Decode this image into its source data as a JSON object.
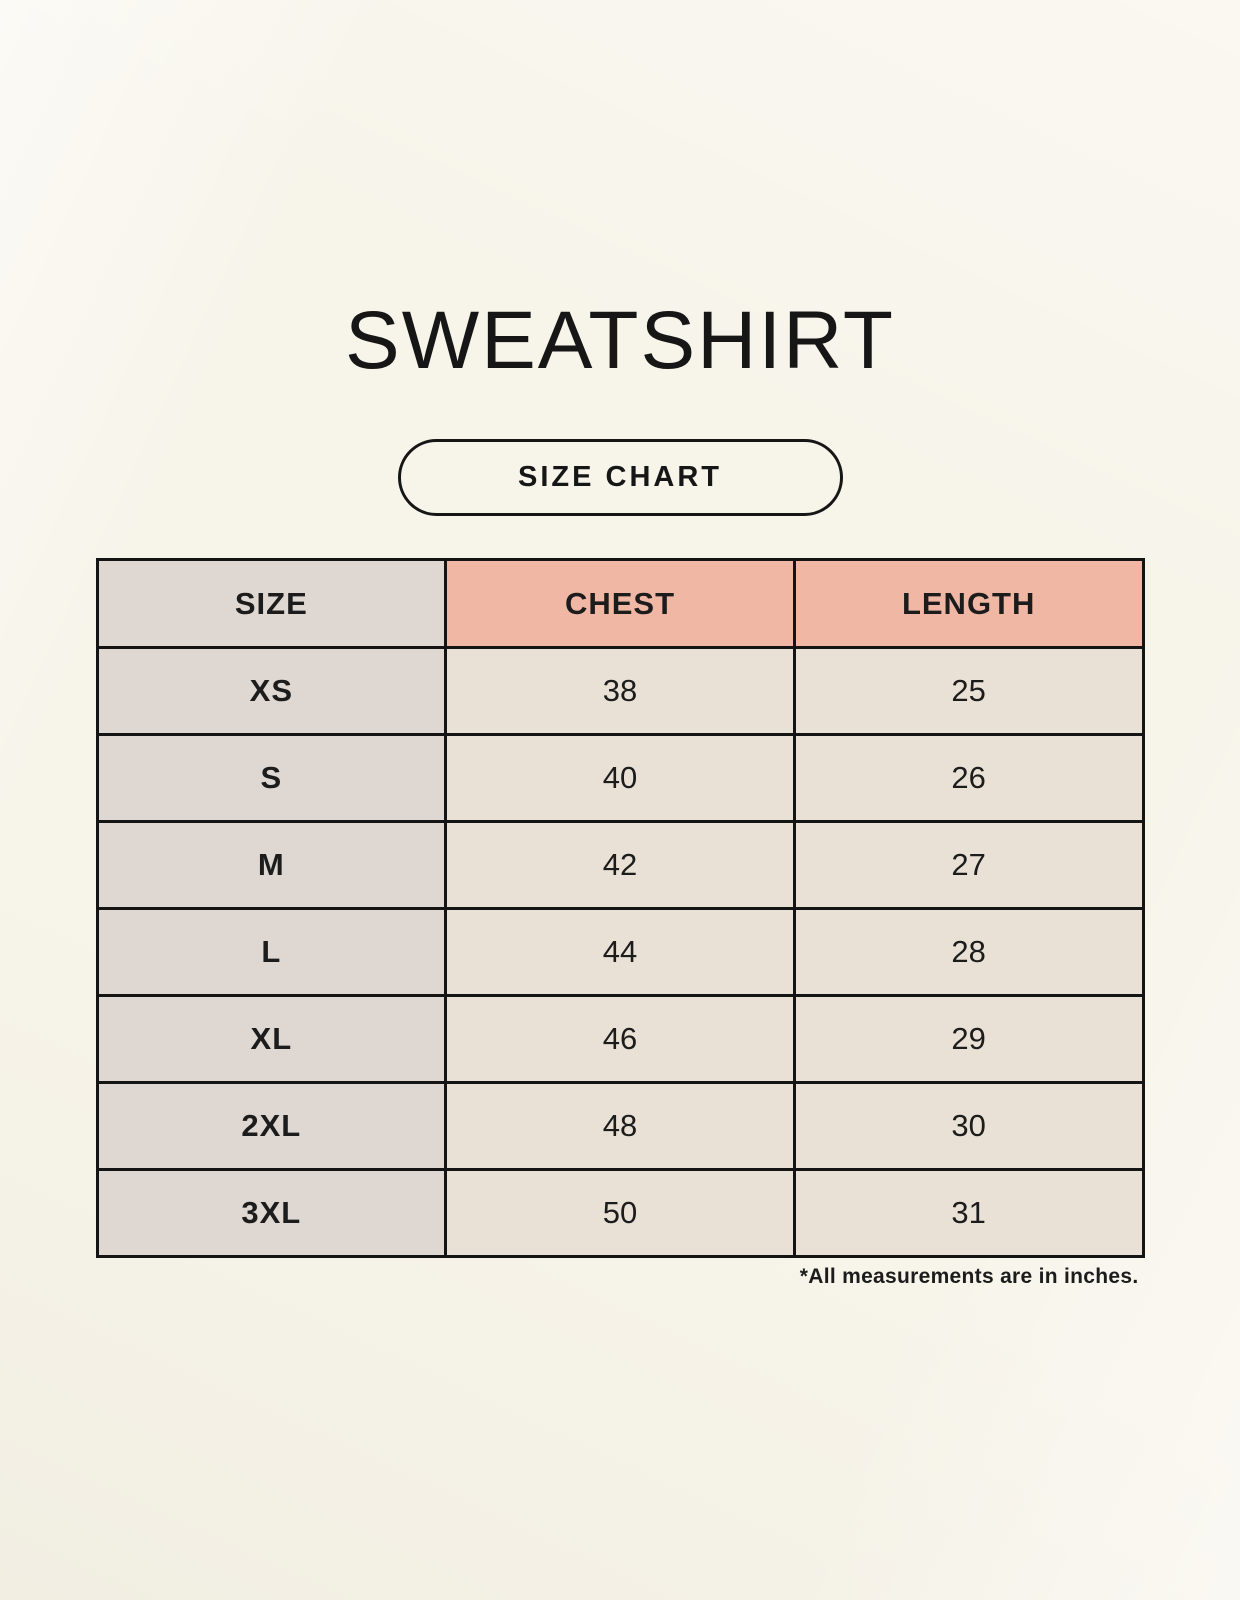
{
  "colors": {
    "background": "#f7f4ea",
    "table_border": "#141414",
    "header_size_bg": "#ded7d2",
    "header_measure_bg": "#f0b8a4",
    "row_label_bg": "#ded7d2",
    "row_value_bg": "#e9e1d5",
    "text": "#1c1c1c"
  },
  "header": {
    "title": "SWEATSHIRT",
    "button_label": "SIZE CHART"
  },
  "chart_data": {
    "type": "table",
    "title": "SWEATSHIRT",
    "columns": [
      "SIZE",
      "CHEST",
      "LENGTH"
    ],
    "rows": [
      [
        "XS",
        "38",
        "25"
      ],
      [
        "S",
        "40",
        "26"
      ],
      [
        "M",
        "42",
        "27"
      ],
      [
        "L",
        "44",
        "28"
      ],
      [
        "XL",
        "46",
        "29"
      ],
      [
        "2XL",
        "48",
        "30"
      ],
      [
        "3XL",
        "50",
        "31"
      ]
    ],
    "units_note": "*All measurements are in inches."
  },
  "footer": {
    "note": "*All measurements are in inches."
  }
}
